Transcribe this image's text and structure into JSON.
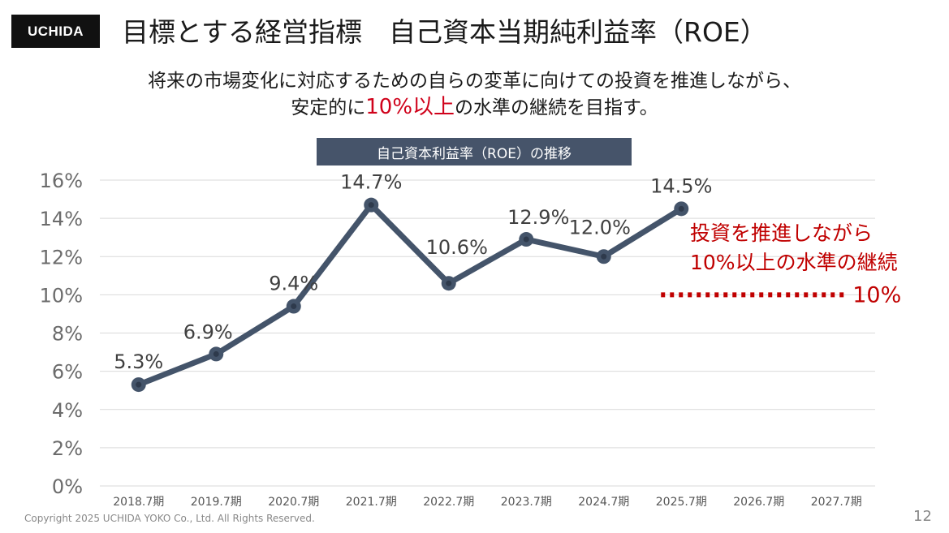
{
  "header": {
    "logo_text": "UCHIDA",
    "title": "目標とする経営指標　自己資本当期純利益率（ROE）"
  },
  "subtitle": {
    "line1": "将来の市場変化に対応するための自らの変革に向けての投資を推進しながら、",
    "line2_pre": "安定的に",
    "line2_highlight": "10%以上",
    "line2_post": "の水準の継続を目指す。"
  },
  "colors": {
    "accent_red": "#c00000",
    "series": "#44546a",
    "grid": "#d9d9d9"
  },
  "chart_data": {
    "type": "line",
    "title": "自己資本利益率（ROE）の推移",
    "categories": [
      "2018.7期",
      "2019.7期",
      "2020.7期",
      "2021.7期",
      "2022.7期",
      "2023.7期",
      "2024.7期",
      "2025.7期",
      "2026.7期",
      "2027.7期"
    ],
    "values": [
      5.3,
      6.9,
      9.4,
      14.7,
      10.6,
      12.9,
      12.0,
      14.5,
      null,
      null
    ],
    "data_labels": [
      "5.3%",
      "6.9%",
      "9.4%",
      "14.7%",
      "10.6%",
      "12.9%",
      "12.0%",
      "14.5%",
      "",
      ""
    ],
    "ylim": [
      0,
      16
    ],
    "yticks": [
      "0%",
      "2%",
      "4%",
      "6%",
      "8%",
      "10%",
      "12%",
      "14%",
      "16%"
    ],
    "ytick_values": [
      0,
      2,
      4,
      6,
      8,
      10,
      12,
      14,
      16
    ],
    "grid": true,
    "target": {
      "value": 10,
      "range": [
        "2025.7期",
        "2027.7期"
      ],
      "label": "10%",
      "annotation_line1": "投資を推進しながら",
      "annotation_line2": "10%以上の水準の継続"
    }
  },
  "footer": {
    "copyright": "Copyright 2025 UCHIDA YOKO Co., Ltd. All Rights Reserved.",
    "page_number": "12"
  }
}
